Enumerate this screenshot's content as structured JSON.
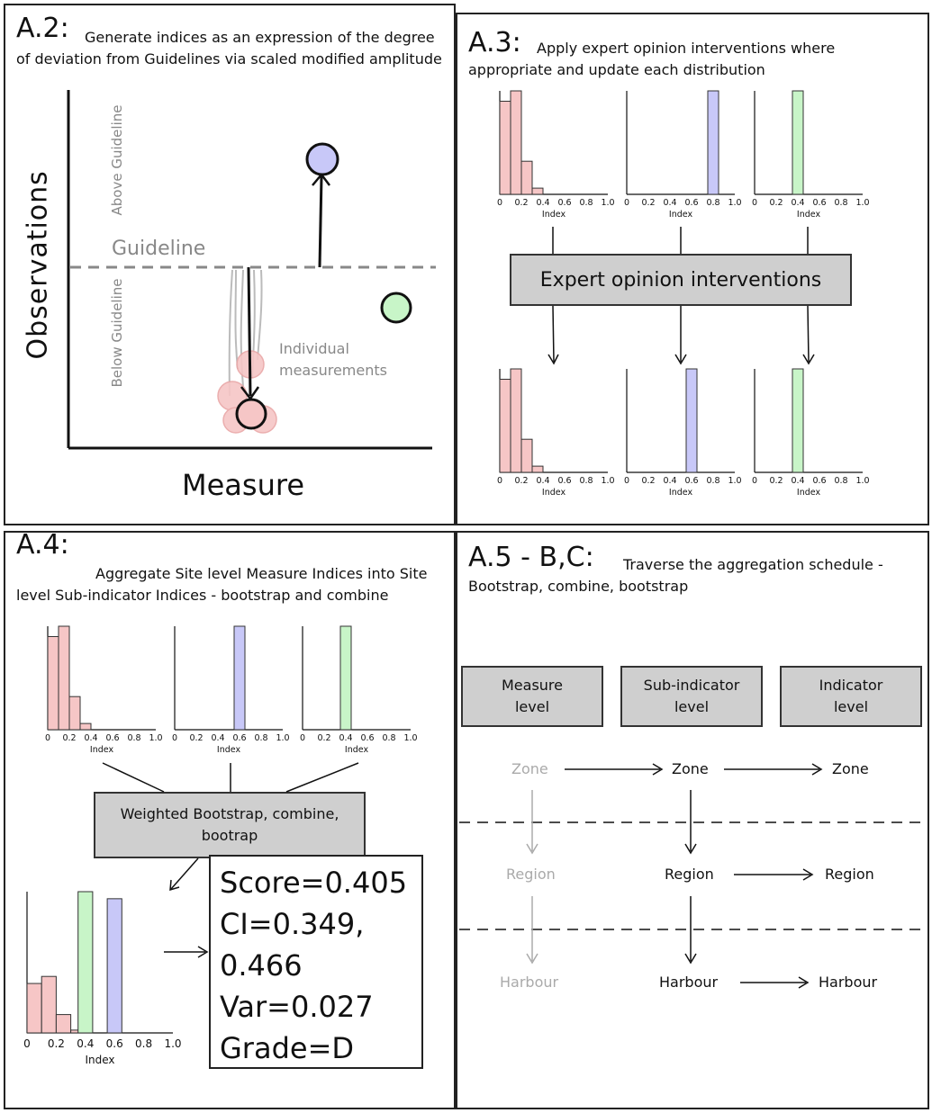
{
  "panels": {
    "a2": {
      "title": "A.2:",
      "description": "Generate indices as an expression of the degree of deviation from Guidelines via scaled modified amplitude",
      "y_axis_label": "Observations",
      "x_axis_label": "Measure",
      "above_label": "Above Guideline",
      "below_label": "Below Guideline",
      "guideline_label": "Guideline",
      "individual_label": "Individual measurements",
      "colors": {
        "blue": "#c8c8f8",
        "green": "#c8f5c8",
        "red": "#f6c6c6"
      }
    },
    "a3": {
      "title": "A.3:",
      "description": "Apply expert opinion interventions where appropriate and update each distribution",
      "box_label": "Expert opinion interventions"
    },
    "a4": {
      "title": "A.4:",
      "description": "Aggregate Site level Measure Indices into Site level Sub-indicator Indices - bootstrap and combine",
      "box_label": "Weighted Bootstrap, combine, bootrap",
      "stats": [
        "Score=0.405",
        "CI=0.349,",
        "0.466",
        "Var=0.027",
        "Grade=D"
      ]
    },
    "a5": {
      "title": "A.5 - B,C:",
      "description": "Traverse the aggregation schedule - Bootstrap, combine, bootstrap",
      "headers": [
        "Measure level",
        "Sub-indicator level",
        "Indicator level"
      ],
      "rows": [
        [
          "Zone",
          "Zone",
          "Zone"
        ],
        [
          "Region",
          "Region",
          "Region"
        ],
        [
          "Harbour",
          "Harbour",
          "Harbour"
        ]
      ]
    }
  },
  "chart_data": [
    {
      "type": "bar",
      "panel": "A.3 top",
      "xlabel": "Index",
      "xlim": [
        0,
        1.0
      ],
      "ticks": [
        "0",
        "0.2",
        "0.4",
        "0.6",
        "0.8",
        "1.0"
      ],
      "color": "#f6c6c6",
      "x": [
        0.0,
        0.05,
        0.15,
        0.25,
        0.35
      ],
      "values": [
        0.22,
        0.9,
        1.0,
        0.32,
        0.06
      ]
    },
    {
      "type": "bar",
      "panel": "A.3 top",
      "xlabel": "Index",
      "xlim": [
        0,
        1.0
      ],
      "ticks": [
        "0",
        "0.2",
        "0.4",
        "0.6",
        "0.8",
        "1.0"
      ],
      "color": "#c8c8f8",
      "x": [
        0.8
      ],
      "values": [
        1.0
      ]
    },
    {
      "type": "bar",
      "panel": "A.3 top",
      "xlabel": "Index",
      "xlim": [
        0,
        1.0
      ],
      "ticks": [
        "0",
        "0.2",
        "0.4",
        "0.6",
        "0.8",
        "1.0"
      ],
      "color": "#c8f5c8",
      "x": [
        0.4
      ],
      "values": [
        1.0
      ]
    },
    {
      "type": "bar",
      "panel": "A.3 bottom",
      "xlabel": "Index",
      "xlim": [
        0,
        1.0
      ],
      "ticks": [
        "0",
        "0.2",
        "0.4",
        "0.6",
        "0.8",
        "1.0"
      ],
      "color": "#f6c6c6",
      "x": [
        0.0,
        0.05,
        0.15,
        0.25,
        0.35
      ],
      "values": [
        0.22,
        0.9,
        1.0,
        0.32,
        0.06
      ]
    },
    {
      "type": "bar",
      "panel": "A.3 bottom",
      "xlabel": "Index",
      "xlim": [
        0,
        1.0
      ],
      "ticks": [
        "0",
        "0.2",
        "0.4",
        "0.6",
        "0.8",
        "1.0"
      ],
      "color": "#c8c8f8",
      "x": [
        0.6
      ],
      "values": [
        1.0
      ]
    },
    {
      "type": "bar",
      "panel": "A.3 bottom",
      "xlabel": "Index",
      "xlim": [
        0,
        1.0
      ],
      "ticks": [
        "0",
        "0.2",
        "0.4",
        "0.6",
        "0.8",
        "1.0"
      ],
      "color": "#c8f5c8",
      "x": [
        0.4
      ],
      "values": [
        1.0
      ]
    },
    {
      "type": "bar",
      "panel": "A.4 top",
      "xlabel": "Index",
      "xlim": [
        0,
        1.0
      ],
      "ticks": [
        "0",
        "0.2",
        "0.4",
        "0.6",
        "0.8",
        "1.0"
      ],
      "color": "#f6c6c6",
      "x": [
        0.0,
        0.05,
        0.15,
        0.25,
        0.35
      ],
      "values": [
        0.22,
        0.9,
        1.0,
        0.32,
        0.06
      ]
    },
    {
      "type": "bar",
      "panel": "A.4 top",
      "xlabel": "Index",
      "xlim": [
        0,
        1.0
      ],
      "ticks": [
        "0",
        "0.2",
        "0.4",
        "0.6",
        "0.8",
        "1.0"
      ],
      "color": "#c8c8f8",
      "x": [
        0.6
      ],
      "values": [
        1.0
      ]
    },
    {
      "type": "bar",
      "panel": "A.4 top",
      "xlabel": "Index",
      "xlim": [
        0,
        1.0
      ],
      "ticks": [
        "0",
        "0.2",
        "0.4",
        "0.6",
        "0.8",
        "1.0"
      ],
      "color": "#c8f5c8",
      "x": [
        0.4
      ],
      "values": [
        1.0
      ]
    },
    {
      "type": "bar",
      "panel": "A.4 combined",
      "xlabel": "Index",
      "xlim": [
        0,
        1.0
      ],
      "ticks": [
        "0",
        "0.2",
        "0.4",
        "0.6",
        "0.8",
        "1.0"
      ],
      "series": [
        {
          "color": "#f6c6c6",
          "x": [
            0.0,
            0.05,
            0.15,
            0.25,
            0.35
          ],
          "values": [
            0.09,
            0.35,
            0.4,
            0.13,
            0.02
          ]
        },
        {
          "color": "#c8f5c8",
          "x": [
            0.4
          ],
          "values": [
            1.0
          ]
        },
        {
          "color": "#c8c8f8",
          "x": [
            0.6
          ],
          "values": [
            0.95
          ]
        }
      ]
    }
  ]
}
